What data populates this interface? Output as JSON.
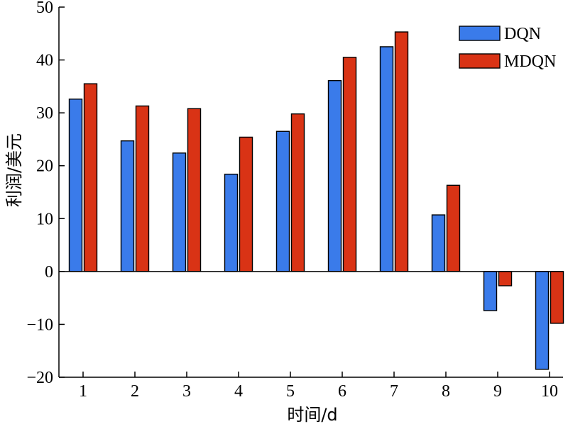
{
  "chart_data": {
    "type": "bar",
    "xlabel": "时间/d",
    "ylabel": "利润/美元",
    "categories": [
      "1",
      "2",
      "3",
      "4",
      "5",
      "6",
      "7",
      "8",
      "9",
      "10"
    ],
    "ylim": [
      -20,
      50
    ],
    "yticks": [
      -20,
      -10,
      0,
      10,
      20,
      30,
      40,
      50
    ],
    "ytick_labels": [
      "−20",
      "−10",
      "0",
      "10",
      "20",
      "30",
      "40",
      "50"
    ],
    "legend_position": "top-right",
    "grid": false,
    "series": [
      {
        "name": "DQN",
        "color": "#3a7bea",
        "values": [
          32.6,
          24.7,
          22.4,
          18.4,
          26.5,
          36.1,
          42.5,
          10.7,
          -7.4,
          -18.5
        ]
      },
      {
        "name": "MDQN",
        "color": "#d93315",
        "values": [
          35.5,
          31.3,
          30.8,
          25.4,
          29.8,
          40.5,
          45.3,
          16.3,
          -2.7,
          -9.8
        ]
      }
    ]
  }
}
